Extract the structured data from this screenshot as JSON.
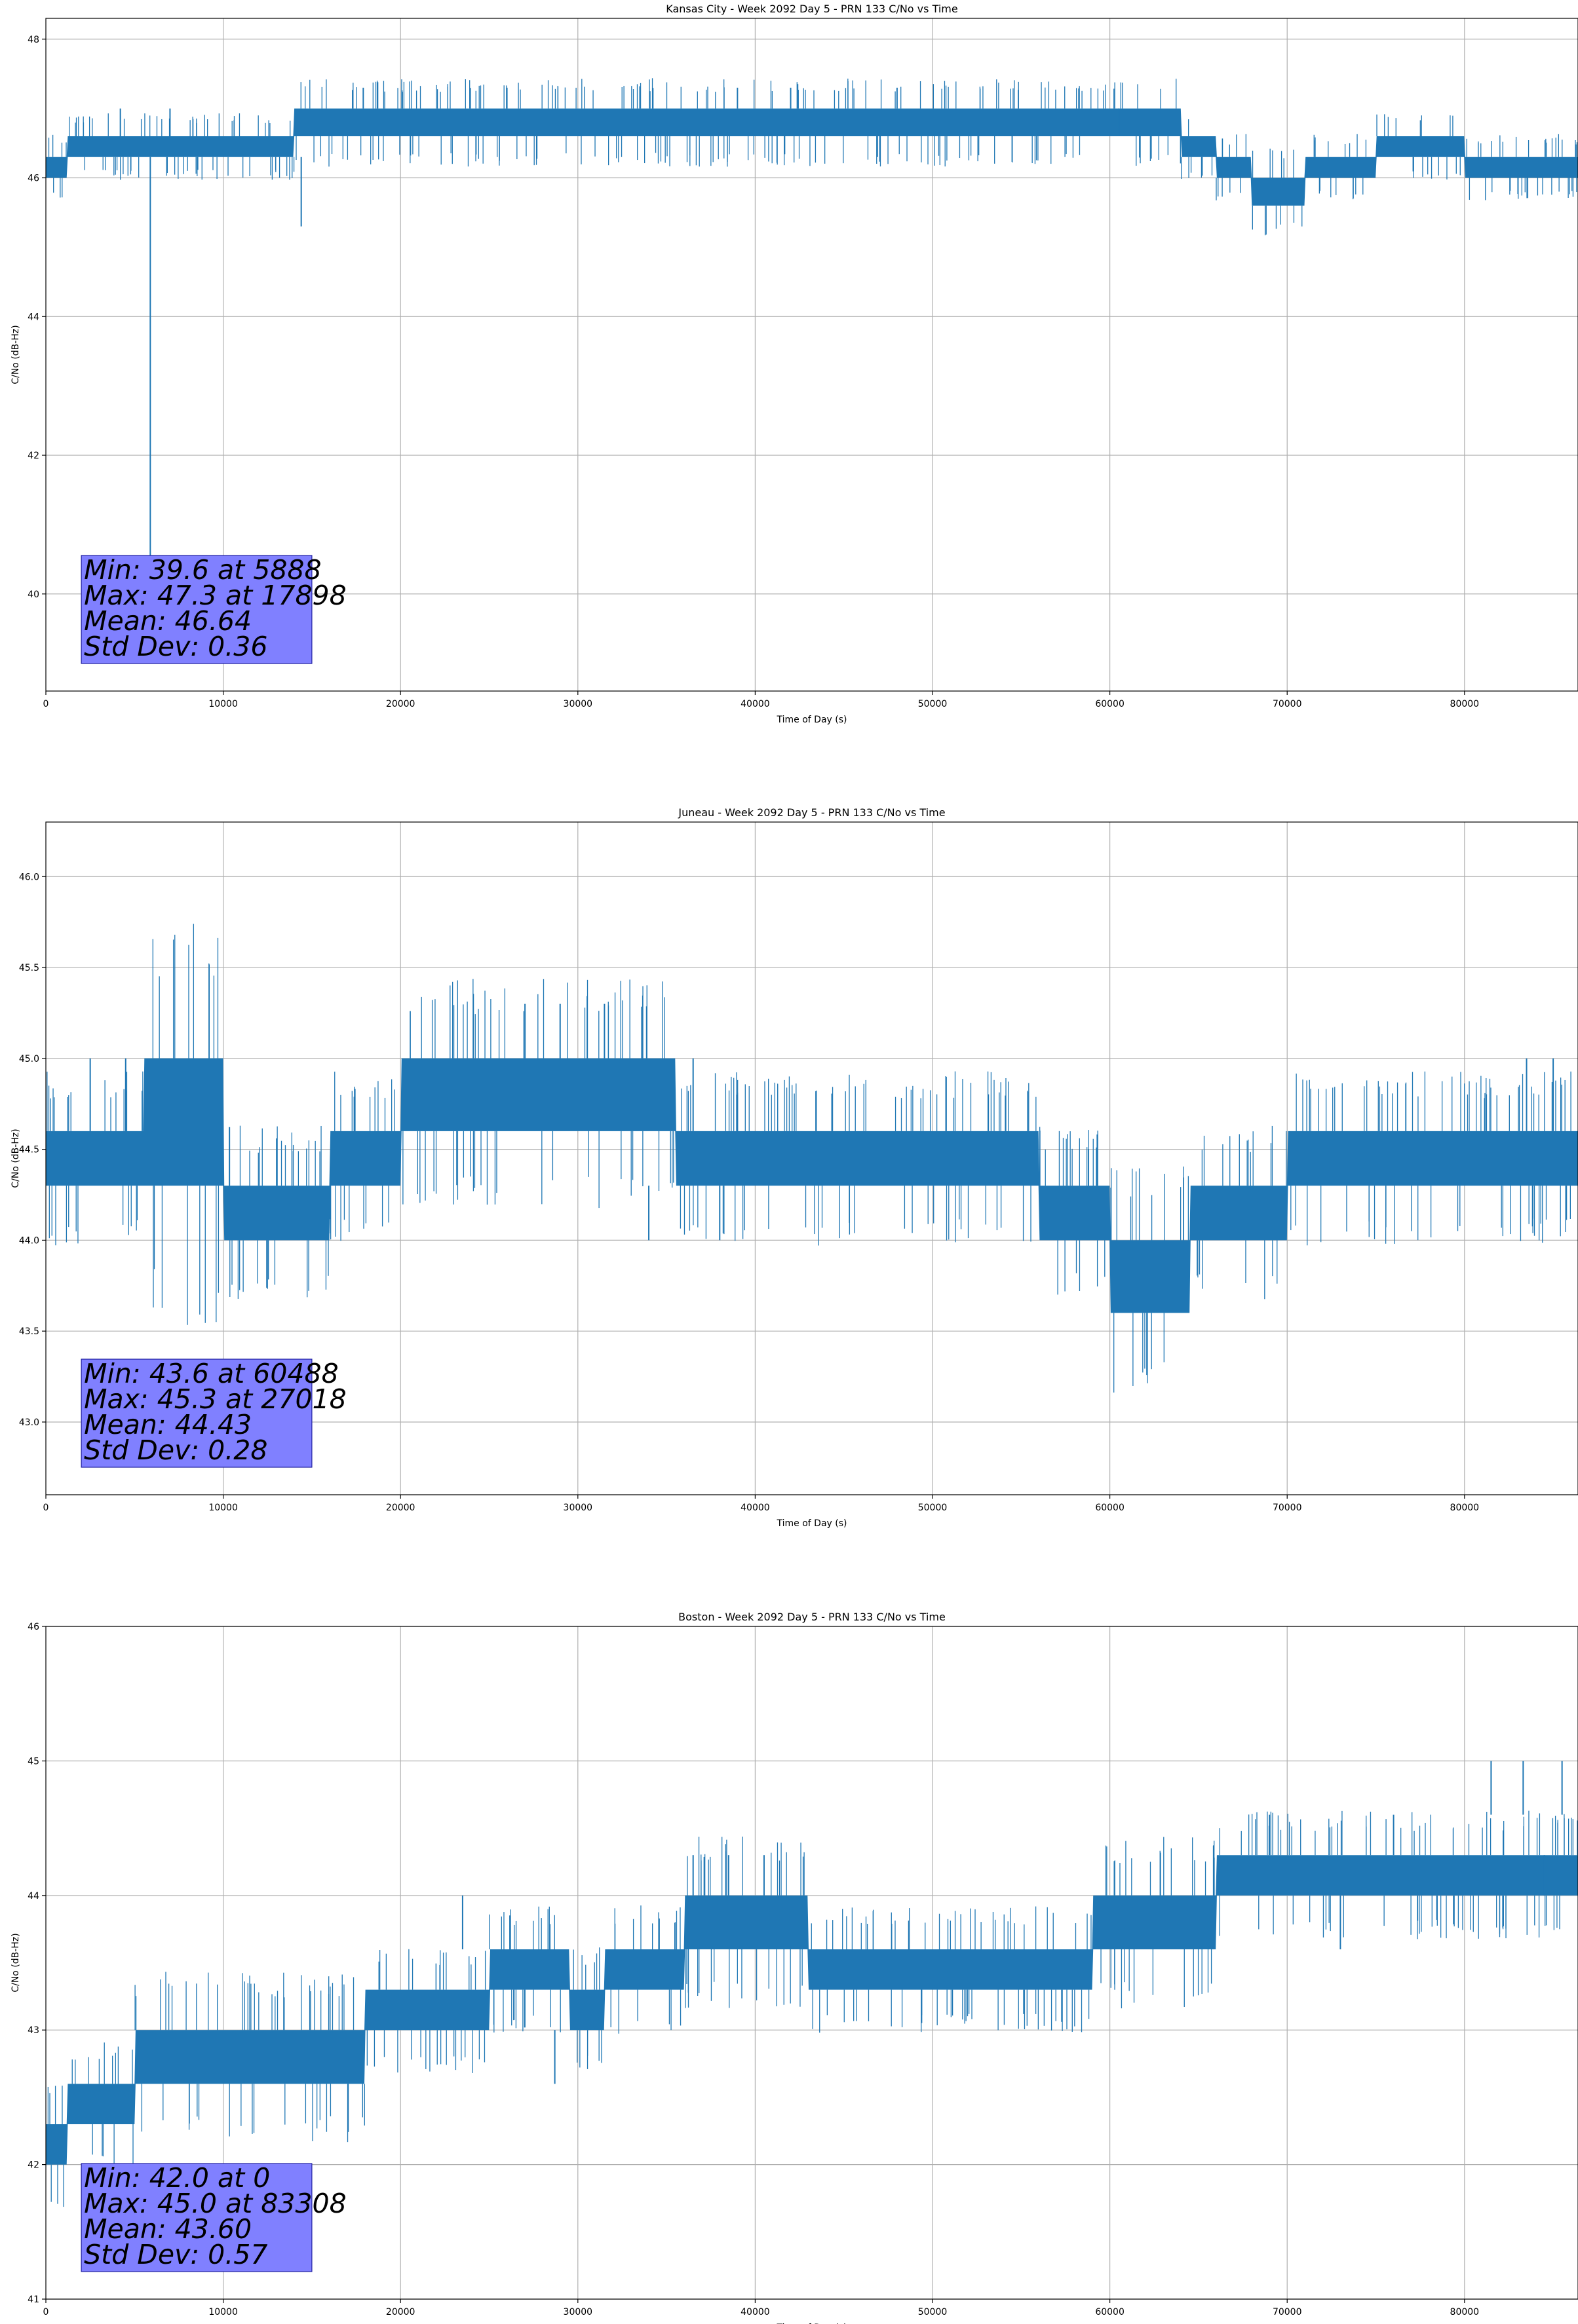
{
  "colors": {
    "series": "#1f77b4",
    "stat_box": "#8080ff",
    "grid": "#b0b0b0"
  },
  "chart_data": [
    {
      "type": "line",
      "title": "Kansas City - Week 2092 Day 5 - PRN 133 C/No vs Time",
      "xlabel": "Time of Day (s)",
      "ylabel": "C/No (dB-Hz)",
      "xlim": [
        0,
        86400
      ],
      "ylim": [
        38.6,
        48.3
      ],
      "xticks": [
        0,
        10000,
        20000,
        30000,
        40000,
        50000,
        60000,
        70000,
        80000
      ],
      "yticks": [
        40,
        42,
        44,
        46,
        48
      ],
      "ytick_labels": [
        "40",
        "42",
        "44",
        "46",
        "48"
      ],
      "grid": true,
      "stats": [
        "Min: 39.6 at 5888",
        "Max: 47.3 at 17898",
        "Mean: 46.64",
        "Std Dev: 0.36"
      ],
      "band": {
        "x": [
          0,
          1200,
          5000,
          10000,
          14000,
          17000,
          20000,
          30000,
          40000,
          50000,
          59000,
          64000,
          66000,
          68000,
          71000,
          75000,
          80000,
          86400
        ],
        "low": [
          46.0,
          46.3,
          46.3,
          46.3,
          46.6,
          46.6,
          46.6,
          46.6,
          46.6,
          46.6,
          46.6,
          46.3,
          46.0,
          45.6,
          46.0,
          46.3,
          46.0,
          46.0
        ],
        "high": [
          46.3,
          46.6,
          46.6,
          46.6,
          47.0,
          47.0,
          47.0,
          47.0,
          47.0,
          47.0,
          47.0,
          46.6,
          46.3,
          46.0,
          46.3,
          46.6,
          46.3,
          46.3
        ]
      },
      "spikes": [
        {
          "x": 5888,
          "y0": 46.3,
          "y1": 39.6
        },
        {
          "x": 14400,
          "y0": 46.3,
          "y1": 45.3
        },
        {
          "x": 17898,
          "y0": 47.0,
          "y1": 47.3
        },
        {
          "x": 26000,
          "y0": 47.0,
          "y1": 47.3
        },
        {
          "x": 39000,
          "y0": 47.0,
          "y1": 47.3
        },
        {
          "x": 42000,
          "y0": 47.0,
          "y1": 47.3
        },
        {
          "x": 48000,
          "y0": 47.0,
          "y1": 47.3
        },
        {
          "x": 4200,
          "y0": 46.6,
          "y1": 47.0
        },
        {
          "x": 7000,
          "y0": 46.6,
          "y1": 47.0
        },
        {
          "x": 60500,
          "y0": 46.6,
          "y1": 47.0
        }
      ]
    },
    {
      "type": "line",
      "title": "Juneau - Week 2092 Day 5 - PRN 133 C/No vs Time",
      "xlabel": "Time of Day (s)",
      "ylabel": "C/No (dB-Hz)",
      "xlim": [
        0,
        86400
      ],
      "ylim": [
        42.6,
        46.3
      ],
      "xticks": [
        0,
        10000,
        20000,
        30000,
        40000,
        50000,
        60000,
        70000,
        80000
      ],
      "yticks": [
        43.0,
        43.5,
        44.0,
        44.5,
        45.0,
        45.5,
        46.0
      ],
      "ytick_labels": [
        "43.0",
        "43.5",
        "44.0",
        "44.5",
        "45.0",
        "45.5",
        "46.0"
      ],
      "grid": true,
      "stats": [
        "Min: 43.6 at 60488",
        "Max: 45.3 at 27018",
        "Mean: 44.43",
        "Std Dev: 0.28"
      ],
      "band": {
        "x": [
          0,
          5500,
          10000,
          16000,
          20000,
          26500,
          30500,
          35500,
          45000,
          56000,
          60000,
          64500,
          70000,
          86400
        ],
        "low": [
          44.3,
          44.3,
          44.0,
          44.3,
          44.6,
          44.6,
          44.6,
          44.3,
          44.3,
          44.0,
          43.6,
          44.0,
          44.3,
          44.3
        ],
        "high": [
          44.6,
          45.0,
          44.3,
          44.6,
          45.0,
          45.0,
          45.0,
          44.6,
          44.6,
          44.3,
          44.0,
          44.3,
          44.6,
          44.6
        ]
      },
      "spikes": [
        {
          "x": 27018,
          "y0": 45.0,
          "y1": 45.3
        },
        {
          "x": 29000,
          "y0": 45.0,
          "y1": 45.3
        },
        {
          "x": 31500,
          "y0": 45.0,
          "y1": 45.3
        },
        {
          "x": 2500,
          "y0": 44.6,
          "y1": 45.0
        },
        {
          "x": 4500,
          "y0": 44.6,
          "y1": 45.0
        },
        {
          "x": 36500,
          "y0": 44.6,
          "y1": 45.0
        },
        {
          "x": 83500,
          "y0": 44.6,
          "y1": 45.0
        },
        {
          "x": 85000,
          "y0": 44.6,
          "y1": 45.0
        },
        {
          "x": 34000,
          "y0": 44.3,
          "y1": 44.0
        },
        {
          "x": 38000,
          "y0": 44.3,
          "y1": 44.0
        }
      ]
    },
    {
      "type": "line",
      "title": "Boston - Week 2092 Day 5 - PRN 133 C/No vs Time",
      "xlabel": "Time of Day (s)",
      "ylabel": "C/No (dB-Hz)",
      "xlim": [
        0,
        86400
      ],
      "ylim": [
        41,
        46
      ],
      "xticks": [
        0,
        10000,
        20000,
        30000,
        40000,
        50000,
        60000,
        70000,
        80000
      ],
      "yticks": [
        41,
        42,
        43,
        44,
        45,
        46
      ],
      "ytick_labels": [
        "41",
        "42",
        "43",
        "44",
        "45",
        "46"
      ],
      "grid": true,
      "stats": [
        "Min: 42.0 at 0",
        "Max: 45.0 at 83308",
        "Mean: 43.60",
        "Std Dev: 0.57"
      ],
      "band": {
        "x": [
          0,
          1200,
          2500,
          5000,
          11500,
          18000,
          22500,
          25000,
          29500,
          31500,
          36000,
          43000,
          55000,
          59000,
          62500,
          66000,
          72000,
          80000,
          86400
        ],
        "low": [
          42.0,
          42.3,
          42.3,
          42.6,
          42.6,
          43.0,
          43.0,
          43.3,
          43.0,
          43.3,
          43.6,
          43.3,
          43.3,
          43.6,
          43.6,
          44.0,
          44.0,
          44.0,
          44.3
        ],
        "high": [
          42.3,
          42.6,
          42.6,
          43.0,
          43.0,
          43.3,
          43.3,
          43.6,
          43.3,
          43.6,
          44.0,
          43.6,
          43.6,
          44.0,
          44.0,
          44.3,
          44.3,
          44.3,
          44.6
        ]
      },
      "spikes": [
        {
          "x": 83308,
          "y0": 44.6,
          "y1": 45.0
        },
        {
          "x": 81500,
          "y0": 44.6,
          "y1": 45.0
        },
        {
          "x": 85500,
          "y0": 44.6,
          "y1": 45.0
        },
        {
          "x": 23500,
          "y0": 43.6,
          "y1": 44.0
        },
        {
          "x": 28700,
          "y0": 43.0,
          "y1": 42.6
        },
        {
          "x": 36500,
          "y0": 44.0,
          "y1": 44.3
        },
        {
          "x": 38500,
          "y0": 44.0,
          "y1": 44.3
        },
        {
          "x": 40500,
          "y0": 44.0,
          "y1": 44.3
        },
        {
          "x": 69000,
          "y0": 44.3,
          "y1": 44.6
        },
        {
          "x": 76000,
          "y0": 44.3,
          "y1": 44.6
        },
        {
          "x": 73000,
          "y0": 44.0,
          "y1": 43.6
        },
        {
          "x": 84500,
          "y0": 44.3,
          "y1": 44.0
        }
      ]
    }
  ]
}
